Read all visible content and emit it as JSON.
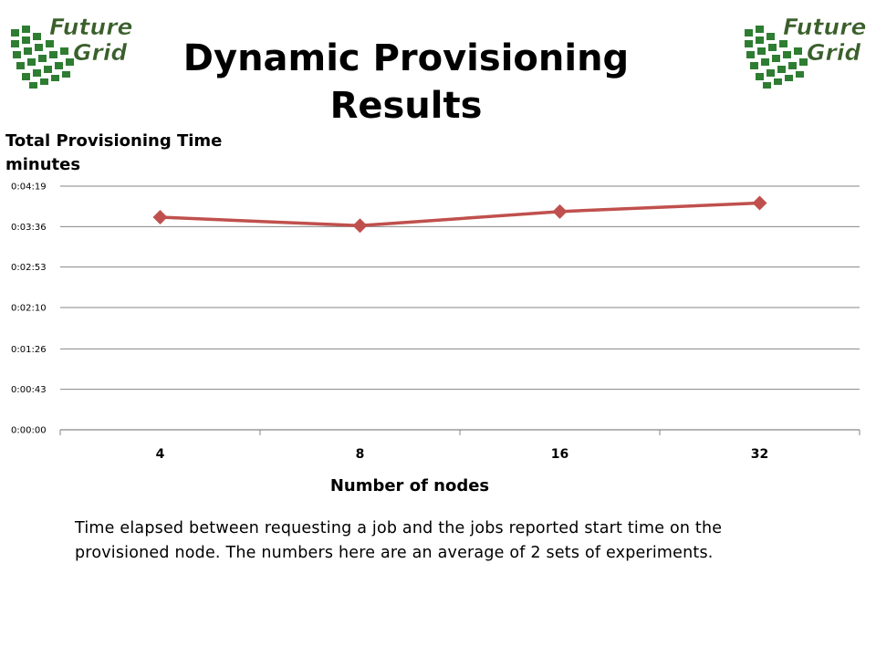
{
  "logo": {
    "line1": "Future",
    "line2": "Grid"
  },
  "title": {
    "line1": "Dynamic Provisioning",
    "line2": "Results"
  },
  "y_axis_title": {
    "line1": "Total Provisioning Time",
    "line2": "minutes"
  },
  "caption": "Time elapsed between requesting a job and the jobs reported start time on the provisioned node. The numbers here are an average of 2 sets of experiments.",
  "colors": {
    "series": "#c0504d",
    "grid": "#868686",
    "logo_green": "#2e7d32",
    "logo_text": "#3a5f2b"
  },
  "chart_data": {
    "type": "line",
    "xlabel": "Number of nodes",
    "categories": [
      "4",
      "8",
      "16",
      "32"
    ],
    "y_ticks": [
      "0:00:00",
      "0:00:43",
      "0:01:26",
      "0:02:10",
      "0:02:53",
      "0:03:36",
      "0:04:19"
    ],
    "y_tick_seconds": [
      0,
      43,
      86,
      130,
      173,
      216,
      259
    ],
    "ylim_seconds": [
      0,
      259
    ],
    "series": [
      {
        "values_seconds": [
          226,
          217,
          232,
          241
        ],
        "values": [
          "0:03:46",
          "0:03:37",
          "0:03:52",
          "0:04:01"
        ]
      }
    ],
    "grid": true,
    "legend": "none",
    "marker": "diamond"
  }
}
